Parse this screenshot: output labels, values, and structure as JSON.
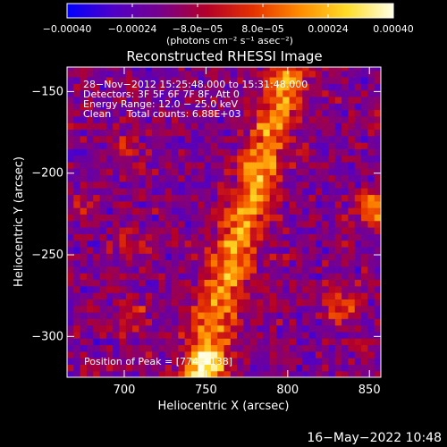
{
  "chart_data": {
    "type": "heatmap",
    "title": "Reconstructed RHESSI Image",
    "xlabel": "Heliocentric X (arcsec)",
    "ylabel": "Heliocentric Y (arcsec)",
    "xlim": [
      665,
      857
    ],
    "ylim": [
      -325,
      -135
    ],
    "x_ticks": [
      700,
      750,
      800,
      850
    ],
    "y_ticks": [
      -150,
      -200,
      -250,
      -300
    ],
    "x_tick_labels": [
      "700",
      "750",
      "800",
      "850"
    ],
    "y_tick_labels": [
      "−150",
      "−200",
      "−250",
      "−300"
    ],
    "colorbar": {
      "range": [
        -0.0004,
        0.0004
      ],
      "tick_values": [
        -0.0004,
        -0.00024,
        -8e-05,
        8e-05,
        0.00024,
        0.0004
      ],
      "tick_labels": [
        "−0.00040",
        "−0.00024",
        "−8.0e−05",
        "8.0e−05",
        "0.00024",
        "0.00040"
      ],
      "unit_text": "(photons cm⁻² s⁻¹ asec⁻²)",
      "colors": [
        "#0000ff",
        "#5000c8",
        "#78008c",
        "#b40028",
        "#e63200",
        "#ff8c00",
        "#ffdc28",
        "#ffffe6"
      ]
    },
    "annotations": [
      "28−Nov−2012 15:25:48.000 to 15:31:48.000",
      "Detectors: 3F 5F 6F 7F 8F, Att 0",
      "Energy Range: 12.0 − 25.0 keV",
      "Clean     Total counts: 6.88E+03"
    ],
    "peak_label": "Position of Peak = [774,−138]",
    "peak_position": [
      774,
      -138
    ],
    "grid": false,
    "features": [
      {
        "name": "main ribbon",
        "x_start": 745,
        "y_start": -325,
        "x_end": 800,
        "y_end": -140,
        "intensity": 0.00034
      },
      {
        "name": "upper-left patch",
        "x": 700,
        "y": -185,
        "intensity": 0.00015
      },
      {
        "name": "left blob",
        "x": 672,
        "y": -220,
        "intensity": 0.00012
      },
      {
        "name": "mid blob",
        "x": 705,
        "y": -245,
        "intensity": 0.00016
      },
      {
        "name": "lower-left blob",
        "x": 703,
        "y": -285,
        "intensity": 0.0002
      },
      {
        "name": "right edge source",
        "x": 852,
        "y": -220,
        "intensity": 0.00036
      },
      {
        "name": "right lower source",
        "x": 833,
        "y": -280,
        "intensity": 0.00022
      },
      {
        "name": "bottom source",
        "x": 752,
        "y": -318,
        "intensity": 0.00028
      }
    ]
  },
  "footer": {
    "timestamp": "16−May−2022 10:48"
  }
}
